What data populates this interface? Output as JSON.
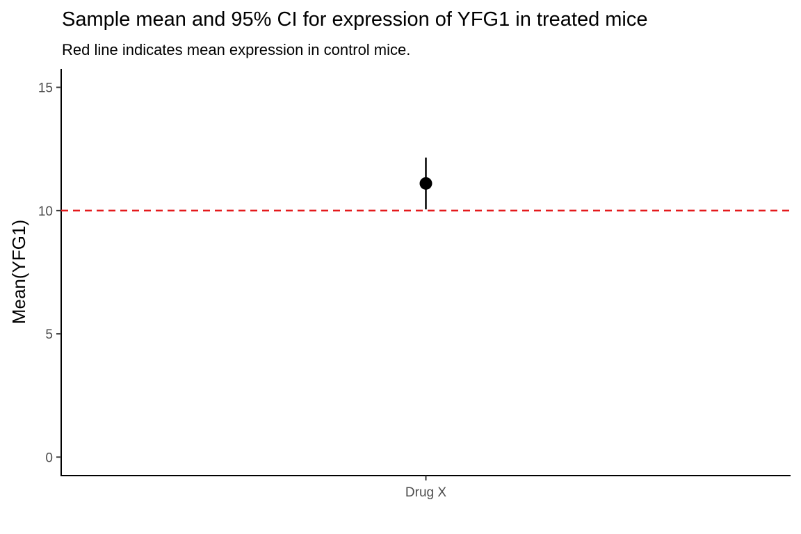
{
  "chart_data": {
    "type": "scatter",
    "title": "Sample mean and 95% CI for expression of YFG1 in treated mice",
    "subtitle": "Red line indicates mean expression in control mice.",
    "xlabel": "",
    "ylabel": "Mean(YFG1)",
    "categories": [
      "Drug X"
    ],
    "points": [
      {
        "category": "Drug X",
        "mean": 11.1,
        "ci_lower": 10.05,
        "ci_upper": 12.15
      }
    ],
    "reference_line": {
      "value": 10,
      "style": "dashed",
      "color": "#e41a1c"
    },
    "y_ticks": [
      0,
      5,
      10,
      15
    ],
    "ylim": [
      -0.75,
      15.75
    ],
    "grid": false,
    "legend": "none"
  }
}
